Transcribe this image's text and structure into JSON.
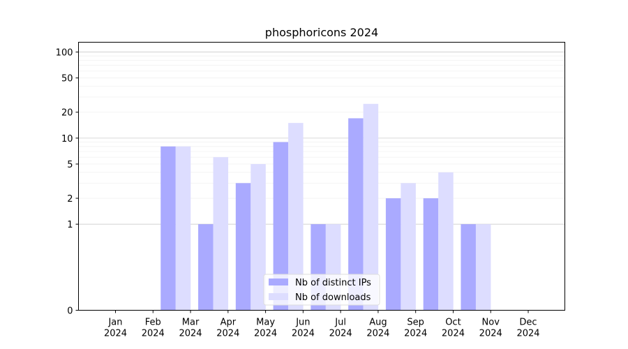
{
  "chart_data": {
    "type": "bar",
    "title": "phosphoricons 2024",
    "xlabel": "",
    "ylabel": "",
    "y_scale": "symlog",
    "yticks": [
      0,
      1,
      2,
      5,
      10,
      20,
      50,
      100
    ],
    "ylim": [
      0,
      130
    ],
    "categories": [
      [
        "Jan",
        "2024"
      ],
      [
        "Feb",
        "2024"
      ],
      [
        "Mar",
        "2024"
      ],
      [
        "Apr",
        "2024"
      ],
      [
        "May",
        "2024"
      ],
      [
        "Jun",
        "2024"
      ],
      [
        "Jul",
        "2024"
      ],
      [
        "Aug",
        "2024"
      ],
      [
        "Sep",
        "2024"
      ],
      [
        "Oct",
        "2024"
      ],
      [
        "Nov",
        "2024"
      ],
      [
        "Dec",
        "2024"
      ]
    ],
    "series": [
      {
        "name": "Nb of distinct IPs",
        "color": "#aaaaff",
        "values": [
          0,
          8,
          1,
          3,
          9,
          1,
          17,
          2,
          2,
          1,
          0,
          0
        ]
      },
      {
        "name": "Nb of downloads",
        "color": "#ddddff",
        "values": [
          0,
          8,
          6,
          5,
          15,
          1,
          25,
          3,
          4,
          1,
          0,
          0
        ]
      }
    ],
    "grid": true,
    "legend_position": "bottom-center"
  }
}
